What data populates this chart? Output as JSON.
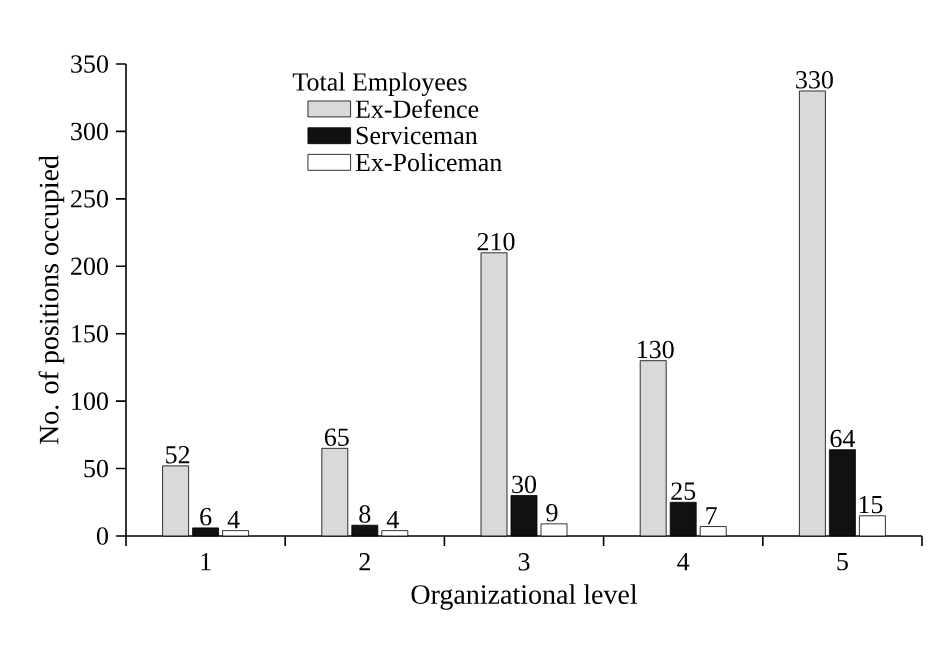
{
  "chart_data": {
    "type": "bar",
    "xlabel": "Organizational level",
    "ylabel": "No. of positions occupied",
    "legend_title": "Total Employees",
    "categories": [
      "1",
      "2",
      "3",
      "4",
      "5"
    ],
    "series": [
      {
        "name": "Ex-Defence",
        "color": "#d9d9d9",
        "values": [
          52,
          65,
          210,
          130,
          330
        ]
      },
      {
        "name": "Serviceman",
        "color": "#111111",
        "values": [
          6,
          8,
          30,
          25,
          64
        ]
      },
      {
        "name": "Ex-Policeman",
        "color": "#ffffff",
        "values": [
          4,
          4,
          9,
          7,
          15
        ]
      }
    ],
    "ylim": [
      0,
      350
    ],
    "yticks": [
      0,
      50,
      100,
      150,
      200,
      250,
      300,
      350
    ],
    "data_labels": true,
    "legend": "top left",
    "grid": false
  }
}
